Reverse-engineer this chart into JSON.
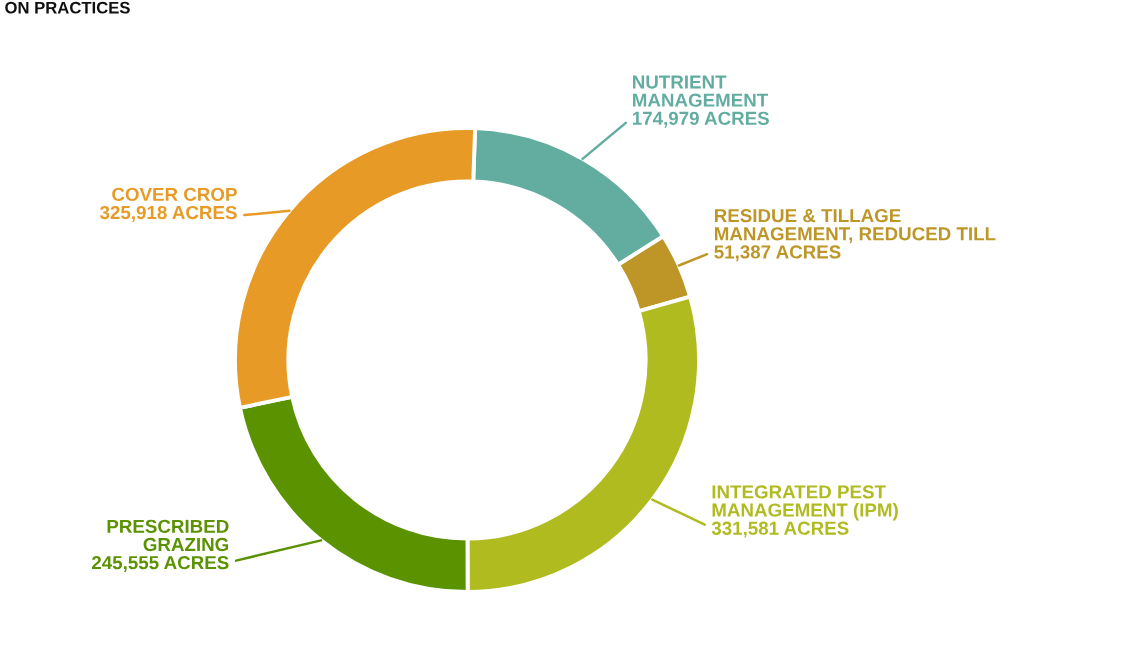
{
  "chart_data": {
    "type": "donut",
    "title": "ON PRACTICES",
    "categories": [
      "NUTRIENT MANAGEMENT",
      "RESIDUE & TILLAGE MANAGEMENT, REDUCED TILL",
      "INTEGRATED PEST MANAGEMENT (IPM)",
      "PRESCRIBED GRAZING",
      "COVER CROP"
    ],
    "values": [
      174979,
      51387,
      331581,
      245555,
      325918
    ],
    "value_labels": [
      "174,979 ACRES",
      "51,387 ACRES",
      "331,581 ACRES",
      "245,555 ACRES",
      "325,918 ACRES"
    ],
    "colors": [
      "#62ada0",
      "#bd9627",
      "#b0bb20",
      "#5a9200",
      "#e89a26"
    ]
  }
}
